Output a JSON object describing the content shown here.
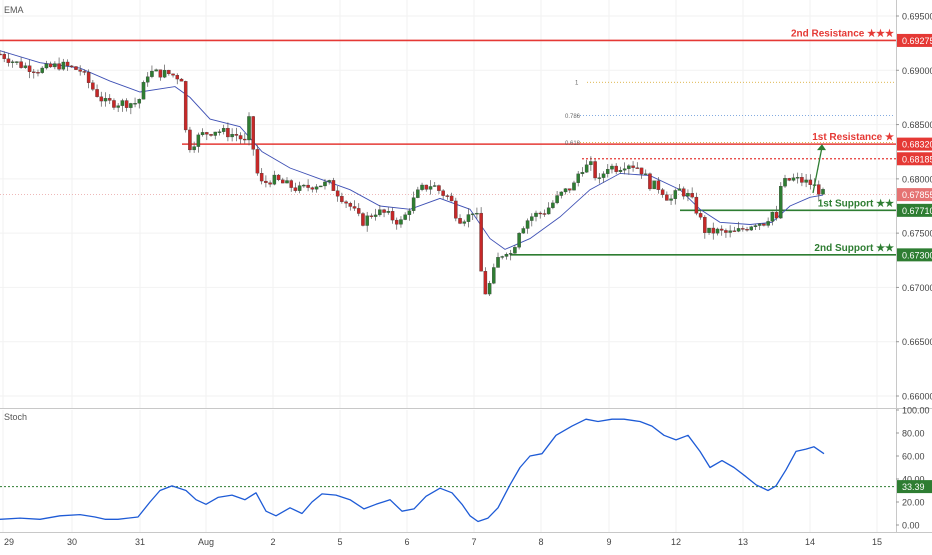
{
  "indicators": {
    "ema_label": "EMA",
    "stoch_label": "Stoch"
  },
  "colors": {
    "up_candle": "#2e7d32",
    "down_candle": "#c62828",
    "ema": "#3f51b5",
    "stoch": "#1e5bd6",
    "resistance": "#e53935",
    "support": "#2e7d32",
    "fib": "#d4a017",
    "axis_text": "#444444",
    "grid": "#f2f2f2"
  },
  "price_axis": {
    "ticks": [
      "0.69500",
      "0.69000",
      "0.68500",
      "0.68000",
      "0.67500",
      "0.67000",
      "0.66500",
      "0.66000"
    ]
  },
  "stoch_axis": {
    "ticks": [
      "100.00",
      "80.00",
      "60.00",
      "40.00",
      "20.00",
      "0.00"
    ]
  },
  "time_axis": {
    "labels": [
      "29",
      "30",
      "31",
      "Aug",
      "2",
      "5",
      "6",
      "7",
      "8",
      "9",
      "12",
      "13",
      "14",
      "15"
    ]
  },
  "levels": [
    {
      "name": "2nd Resistance ★★★",
      "price_label": "0.69275",
      "type": "resistance",
      "style": "solid"
    },
    {
      "name": "1st Resistance ★",
      "price_label": "0.68320",
      "type": "resistance",
      "style": "solid"
    },
    {
      "name": "",
      "price_label": "0.68185",
      "type": "resistance",
      "style": "dotted"
    },
    {
      "name": "",
      "price_label": "0.67855",
      "type": "current",
      "style": "thin"
    },
    {
      "name": "1st Support ★★",
      "price_label": "0.67710",
      "type": "support",
      "style": "solid"
    },
    {
      "name": "2nd Support ★★",
      "price_label": "0.67300",
      "type": "support",
      "style": "solid"
    }
  ],
  "fib_labels": [
    "1",
    "0.786",
    "0.618"
  ],
  "stoch_level": {
    "label": "33.39"
  },
  "chart_data": {
    "type": "candlestick",
    "price_ylim": [
      0.6575,
      0.6975
    ],
    "stoch_ylim": [
      0,
      100
    ],
    "ema_period_label": "EMA",
    "levels": [
      0.69275,
      0.6832,
      0.68185,
      0.67855,
      0.6771,
      0.673
    ],
    "fib": {
      "1": 0.6889,
      "0.786": 0.68585,
      "0.618": 0.68335
    },
    "close_path": [
      [
        0,
        0.6915
      ],
      [
        20,
        0.6905
      ],
      [
        40,
        0.69
      ],
      [
        60,
        0.6905
      ],
      [
        80,
        0.69
      ],
      [
        95,
        0.688
      ],
      [
        105,
        0.687
      ],
      [
        118,
        0.687
      ],
      [
        138,
        0.687
      ],
      [
        148,
        0.6898
      ],
      [
        168,
        0.6897
      ],
      [
        182,
        0.6893
      ],
      [
        186,
        0.684
      ],
      [
        190,
        0.683
      ],
      [
        200,
        0.684
      ],
      [
        215,
        0.6845
      ],
      [
        228,
        0.6842
      ],
      [
        238,
        0.684
      ],
      [
        246,
        0.6832
      ],
      [
        250,
        0.686
      ],
      [
        255,
        0.681
      ],
      [
        262,
        0.6795
      ],
      [
        272,
        0.68
      ],
      [
        285,
        0.6795
      ],
      [
        300,
        0.679
      ],
      [
        315,
        0.6795
      ],
      [
        330,
        0.6795
      ],
      [
        340,
        0.6785
      ],
      [
        350,
        0.6775
      ],
      [
        362,
        0.676
      ],
      [
        375,
        0.677
      ],
      [
        385,
        0.6768
      ],
      [
        395,
        0.6762
      ],
      [
        402,
        0.676
      ],
      [
        410,
        0.6775
      ],
      [
        420,
        0.679
      ],
      [
        432,
        0.6795
      ],
      [
        442,
        0.6787
      ],
      [
        450,
        0.6782
      ],
      [
        458,
        0.6763
      ],
      [
        468,
        0.6765
      ],
      [
        476,
        0.6775
      ],
      [
        481,
        0.6715
      ],
      [
        485,
        0.6695
      ],
      [
        491,
        0.6705
      ],
      [
        497,
        0.6725
      ],
      [
        506,
        0.6735
      ],
      [
        512,
        0.673
      ],
      [
        518,
        0.6752
      ],
      [
        530,
        0.6765
      ],
      [
        545,
        0.677
      ],
      [
        560,
        0.6785
      ],
      [
        575,
        0.6795
      ],
      [
        580,
        0.681
      ],
      [
        592,
        0.6812
      ],
      [
        598,
        0.6795
      ],
      [
        607,
        0.6812
      ],
      [
        617,
        0.681
      ],
      [
        627,
        0.6815
      ],
      [
        640,
        0.681
      ],
      [
        650,
        0.6795
      ],
      [
        660,
        0.6792
      ],
      [
        670,
        0.678
      ],
      [
        680,
        0.679
      ],
      [
        690,
        0.6783
      ],
      [
        697,
        0.677
      ],
      [
        706,
        0.675
      ],
      [
        715,
        0.6752
      ],
      [
        725,
        0.675
      ],
      [
        735,
        0.675
      ],
      [
        745,
        0.6755
      ],
      [
        755,
        0.676
      ],
      [
        765,
        0.676
      ],
      [
        772,
        0.677
      ],
      [
        777,
        0.676
      ],
      [
        781,
        0.6795
      ],
      [
        792,
        0.68
      ],
      [
        802,
        0.6798
      ],
      [
        812,
        0.6795
      ],
      [
        818,
        0.679
      ],
      [
        823,
        0.6786
      ]
    ],
    "ema_path": [
      [
        0,
        0.6918
      ],
      [
        40,
        0.6907
      ],
      [
        80,
        0.6902
      ],
      [
        110,
        0.689
      ],
      [
        140,
        0.688
      ],
      [
        175,
        0.6885
      ],
      [
        190,
        0.6875
      ],
      [
        210,
        0.6855
      ],
      [
        240,
        0.6848
      ],
      [
        262,
        0.6825
      ],
      [
        290,
        0.681
      ],
      [
        320,
        0.68
      ],
      [
        350,
        0.679
      ],
      [
        380,
        0.6775
      ],
      [
        410,
        0.6772
      ],
      [
        440,
        0.6782
      ],
      [
        470,
        0.6772
      ],
      [
        490,
        0.6745
      ],
      [
        505,
        0.6735
      ],
      [
        530,
        0.6745
      ],
      [
        560,
        0.6765
      ],
      [
        590,
        0.679
      ],
      [
        620,
        0.6805
      ],
      [
        650,
        0.6803
      ],
      [
        680,
        0.679
      ],
      [
        700,
        0.6772
      ],
      [
        720,
        0.676
      ],
      [
        750,
        0.6758
      ],
      [
        772,
        0.676
      ],
      [
        790,
        0.6775
      ],
      [
        810,
        0.6783
      ],
      [
        823,
        0.6785
      ]
    ],
    "stoch_path": [
      [
        0,
        5
      ],
      [
        20,
        6
      ],
      [
        40,
        5
      ],
      [
        60,
        8
      ],
      [
        80,
        9
      ],
      [
        95,
        7
      ],
      [
        105,
        5
      ],
      [
        118,
        5
      ],
      [
        138,
        7
      ],
      [
        150,
        20
      ],
      [
        160,
        30
      ],
      [
        172,
        34
      ],
      [
        186,
        30
      ],
      [
        196,
        22
      ],
      [
        206,
        18
      ],
      [
        218,
        24
      ],
      [
        232,
        26
      ],
      [
        245,
        22
      ],
      [
        256,
        28
      ],
      [
        266,
        12
      ],
      [
        276,
        8
      ],
      [
        290,
        15
      ],
      [
        302,
        10
      ],
      [
        312,
        20
      ],
      [
        322,
        27
      ],
      [
        336,
        26
      ],
      [
        350,
        22
      ],
      [
        364,
        14
      ],
      [
        376,
        18
      ],
      [
        390,
        22
      ],
      [
        402,
        12
      ],
      [
        414,
        14
      ],
      [
        426,
        25
      ],
      [
        440,
        32
      ],
      [
        452,
        28
      ],
      [
        462,
        18
      ],
      [
        470,
        8
      ],
      [
        478,
        3
      ],
      [
        488,
        6
      ],
      [
        498,
        15
      ],
      [
        510,
        35
      ],
      [
        520,
        50
      ],
      [
        530,
        60
      ],
      [
        542,
        62
      ],
      [
        556,
        78
      ],
      [
        572,
        86
      ],
      [
        586,
        92
      ],
      [
        598,
        90
      ],
      [
        612,
        92
      ],
      [
        624,
        92
      ],
      [
        640,
        90
      ],
      [
        652,
        86
      ],
      [
        664,
        78
      ],
      [
        676,
        74
      ],
      [
        688,
        78
      ],
      [
        700,
        64
      ],
      [
        710,
        50
      ],
      [
        722,
        56
      ],
      [
        734,
        50
      ],
      [
        746,
        42
      ],
      [
        756,
        35
      ],
      [
        768,
        30
      ],
      [
        776,
        34
      ],
      [
        786,
        48
      ],
      [
        796,
        64
      ],
      [
        806,
        66
      ],
      [
        814,
        68
      ],
      [
        824,
        62
      ]
    ]
  }
}
